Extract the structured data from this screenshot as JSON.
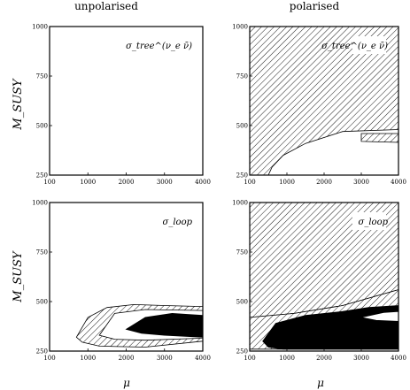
{
  "figure": {
    "col_titles": [
      "unpolarised",
      "polarised"
    ],
    "ylabel": "M_SUSY",
    "xlabel": "μ"
  },
  "chart_data": [
    {
      "type": "area",
      "panel": "top-left",
      "annotation": "σ_tree^(ν_e ν̄)",
      "xlim": [
        0,
        4000
      ],
      "ylim": [
        250,
        1000
      ],
      "x_ticks": [
        "100",
        "1000",
        "2000",
        "3000",
        "4000"
      ],
      "y_ticks": [
        "1000",
        "750",
        "500",
        "250"
      ],
      "regions": []
    },
    {
      "type": "area",
      "panel": "top-right",
      "annotation": "σ_tree^(ν_e ν̄)",
      "xlim": [
        0,
        4000
      ],
      "ylim": [
        250,
        1000
      ],
      "x_ticks": [
        "100",
        "1000",
        "2000",
        "3000",
        "4000"
      ],
      "y_ticks": [
        "1000",
        "750",
        "500",
        "250"
      ],
      "regions": [
        {
          "fill": "hatched",
          "polygon": [
            [
              0,
              1000
            ],
            [
              4000,
              1000
            ],
            [
              4000,
              480
            ],
            [
              2500,
              470
            ],
            [
              1500,
              410
            ],
            [
              900,
              350
            ],
            [
              600,
              290
            ],
            [
              500,
              250
            ],
            [
              0,
              250
            ]
          ]
        },
        {
          "fill": "hatched",
          "polygon": [
            [
              3000,
              460
            ],
            [
              4000,
              460
            ],
            [
              4000,
              415
            ],
            [
              3000,
              420
            ]
          ]
        }
      ]
    },
    {
      "type": "area",
      "panel": "bottom-left",
      "annotation": "σ_loop",
      "xlim": [
        0,
        4000
      ],
      "ylim": [
        250,
        1000
      ],
      "x_ticks": [
        "100",
        "1000",
        "2000",
        "3000",
        "4000"
      ],
      "y_ticks": [
        "1000",
        "750",
        "500",
        "250"
      ],
      "regions": [
        {
          "fill": "hatched",
          "polygon": [
            [
              700,
              320
            ],
            [
              1000,
              420
            ],
            [
              1500,
              470
            ],
            [
              2200,
              485
            ],
            [
              3000,
              480
            ],
            [
              4000,
              475
            ],
            [
              4000,
              300
            ],
            [
              2500,
              270
            ],
            [
              1300,
              275
            ],
            [
              850,
              295
            ]
          ]
        },
        {
          "fill": "white",
          "polygon": [
            [
              1300,
              330
            ],
            [
              1700,
              440
            ],
            [
              2500,
              460
            ],
            [
              4000,
              455
            ],
            [
              4000,
              315
            ],
            [
              2500,
              305
            ],
            [
              1700,
              310
            ]
          ]
        },
        {
          "fill": "black",
          "polygon": [
            [
              2000,
              360
            ],
            [
              2500,
              420
            ],
            [
              3200,
              440
            ],
            [
              4000,
              430
            ],
            [
              4000,
              320
            ],
            [
              3000,
              330
            ],
            [
              2400,
              340
            ]
          ]
        }
      ]
    },
    {
      "type": "area",
      "panel": "bottom-right",
      "annotation": "σ_loop",
      "xlim": [
        0,
        4000
      ],
      "ylim": [
        250,
        1000
      ],
      "x_ticks": [
        "100",
        "1000",
        "2000",
        "3000",
        "4000"
      ],
      "y_ticks": [
        "1000",
        "750",
        "500",
        "250"
      ],
      "regions": [
        {
          "fill": "hatched",
          "polygon": [
            [
              0,
              1000
            ],
            [
              4000,
              1000
            ],
            [
              4000,
              560
            ],
            [
              2500,
              480
            ],
            [
              1200,
              440
            ],
            [
              0,
              420
            ]
          ]
        },
        {
          "fill": "hatched",
          "polygon": [
            [
              0,
              420
            ],
            [
              1200,
              440
            ],
            [
              2500,
              480
            ],
            [
              4000,
              560
            ],
            [
              4000,
              260
            ],
            [
              0,
              260
            ]
          ]
        },
        {
          "fill": "black",
          "polygon": [
            [
              350,
              300
            ],
            [
              700,
              390
            ],
            [
              1500,
              430
            ],
            [
              2500,
              450
            ],
            [
              3200,
              470
            ],
            [
              4000,
              480
            ],
            [
              4000,
              260
            ],
            [
              900,
              260
            ],
            [
              500,
              270
            ]
          ]
        },
        {
          "fill": "white",
          "polygon": [
            [
              3000,
              420
            ],
            [
              3600,
              445
            ],
            [
              4000,
              450
            ],
            [
              4000,
              400
            ],
            [
              3400,
              405
            ]
          ]
        }
      ]
    }
  ]
}
